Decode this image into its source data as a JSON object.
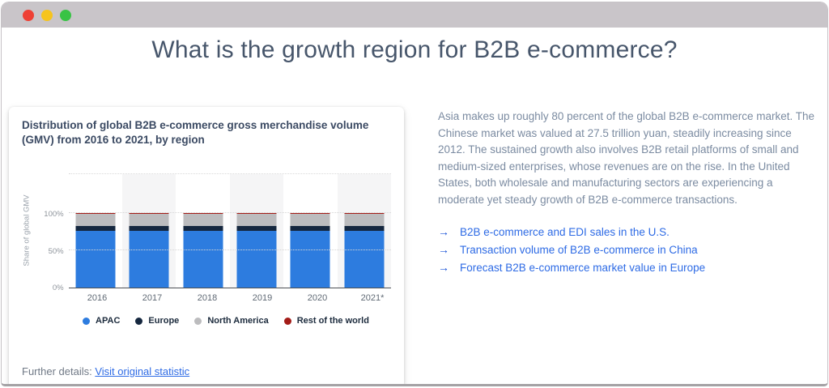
{
  "window": {
    "traffic_lights": [
      {
        "name": "close",
        "color": "#ee4035"
      },
      {
        "name": "minimize",
        "color": "#f6c41e"
      },
      {
        "name": "zoom",
        "color": "#38c345"
      }
    ]
  },
  "page": {
    "title": "What is the growth region for B2B e-commerce?"
  },
  "card": {
    "title": "Distribution of global B2B e-commerce gross merchandise volume (GMV) from 2016 to 2021, by region",
    "further_details_label": "Further details:",
    "further_details_link": "Visit original statistic"
  },
  "chart_data": {
    "type": "bar",
    "stacked": true,
    "title": "Distribution of global B2B e-commerce gross merchandise volume (GMV) from 2016 to 2021, by region",
    "ylabel": "Share of global GMV",
    "yticks": [
      "0%",
      "50%",
      "100%"
    ],
    "ylim": [
      0,
      155
    ],
    "grid": "dotted-horizontal",
    "legend_position": "bottom",
    "categories": [
      "2016",
      "2017",
      "2018",
      "2019",
      "2020",
      "2021*"
    ],
    "series": [
      {
        "name": "APAC",
        "color": "#2d7cdf",
        "values": [
          77,
          77,
          77,
          77,
          77,
          77
        ]
      },
      {
        "name": "Europe",
        "color": "#15273f",
        "values": [
          6,
          6,
          6,
          6,
          6,
          6
        ]
      },
      {
        "name": "North America",
        "color": "#bcbcbe",
        "values": [
          16,
          16,
          16,
          16,
          16,
          16
        ]
      },
      {
        "name": "Rest of the world",
        "color": "#a31c18",
        "values": [
          1,
          1,
          1,
          1,
          1,
          1
        ]
      }
    ]
  },
  "article": {
    "paragraph": "Asia makes up roughly 80 percent of the global B2B e-commerce market. The Chinese market was valued at 27.5 trillion yuan, steadily increasing since 2012. The sustained growth also involves B2B retail platforms of small and medium-sized enterprises, whose revenues are on the rise. In the United States, both wholesale and manufacturing sectors are experiencing a moderate yet steady growth of B2B e-commerce transactions.",
    "arrow_icon": "→",
    "links": [
      {
        "label": "B2B e-commerce and EDI sales in the U.S."
      },
      {
        "label": "Transaction volume of B2B e-commerce in China"
      },
      {
        "label": "Forecast B2B e-commerce market value in Europe"
      }
    ]
  }
}
